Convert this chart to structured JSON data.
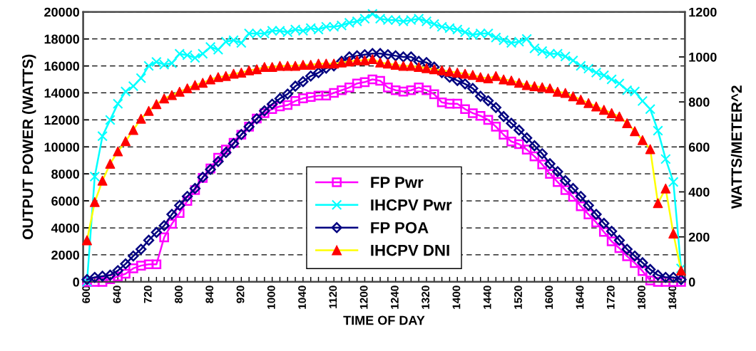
{
  "chart_data": {
    "type": "line",
    "xlabel": "TIME OF DAY",
    "ylabel": "OUTPUT POWER (WATTS)",
    "y2label": "WATTS/METER^2",
    "categories": [
      "600",
      null,
      null,
      null,
      "640",
      null,
      null,
      null,
      "720",
      null,
      null,
      null,
      "800",
      null,
      null,
      null,
      "840",
      null,
      null,
      null,
      "920",
      null,
      null,
      null,
      "1000",
      null,
      null,
      null,
      "1040",
      null,
      null,
      null,
      "1120",
      null,
      null,
      null,
      "1200",
      null,
      null,
      null,
      "1240",
      null,
      null,
      null,
      "1320",
      null,
      null,
      null,
      "1400",
      null,
      null,
      null,
      "1440",
      null,
      null,
      null,
      "1520",
      null,
      null,
      null,
      "1600",
      null,
      null,
      null,
      "1640",
      null,
      null,
      null,
      "1720",
      null,
      null,
      null,
      "1800",
      null,
      null,
      null,
      "1840",
      null
    ],
    "ylim": [
      0,
      20000
    ],
    "yticks": [
      0,
      2000,
      4000,
      6000,
      8000,
      10000,
      12000,
      14000,
      16000,
      18000,
      20000
    ],
    "y2lim": [
      0,
      1200
    ],
    "y2ticks": [
      0,
      200,
      400,
      600,
      800,
      1000,
      1200
    ],
    "grid": "y",
    "legend": "bottom",
    "series": [
      {
        "name": "FP Pwr",
        "color": "#ff00ff",
        "marker": "square",
        "values": [
          0,
          0,
          0,
          200,
          400,
          600,
          1000,
          1200,
          1300,
          1300,
          3300,
          4300,
          5100,
          6000,
          6800,
          7700,
          8400,
          9200,
          9800,
          10300,
          10900,
          11500,
          12100,
          12500,
          12800,
          13000,
          13100,
          13400,
          13600,
          13700,
          13800,
          13800,
          14000,
          14200,
          14400,
          14700,
          14800,
          15000,
          14900,
          14400,
          14200,
          14100,
          14200,
          14400,
          14200,
          13900,
          13300,
          13200,
          13200,
          12800,
          12500,
          12300,
          12000,
          11500,
          10900,
          10400,
          10200,
          9800,
          9300,
          8700,
          8000,
          7400,
          6800,
          6300,
          5600,
          5000,
          4400,
          3700,
          3000,
          2500,
          1900,
          1400,
          800,
          100,
          0,
          0,
          0,
          0
        ]
      },
      {
        "name": "IHCPV Pwr",
        "color": "#00ffff",
        "marker": "cross",
        "values": [
          0,
          7800,
          10800,
          12000,
          13200,
          14100,
          14500,
          15100,
          16000,
          16300,
          16100,
          16200,
          16900,
          16800,
          16600,
          16900,
          17400,
          17200,
          17800,
          17900,
          17700,
          18400,
          18400,
          18400,
          18600,
          18600,
          18500,
          18700,
          18600,
          18800,
          18700,
          18900,
          18900,
          19000,
          19200,
          19300,
          19500,
          19850,
          19500,
          19400,
          19400,
          19300,
          19400,
          19500,
          19300,
          19100,
          18900,
          18800,
          18700,
          18500,
          18300,
          18400,
          18400,
          18100,
          17900,
          17700,
          17800,
          18000,
          17300,
          17100,
          16900,
          16900,
          16700,
          16400,
          16000,
          15800,
          15500,
          15300,
          15000,
          14700,
          14200,
          14100,
          13400,
          12800,
          11200,
          9100,
          7400,
          1000
        ]
      },
      {
        "name": "FP POA",
        "color": "#000080",
        "marker": "diamond",
        "axis": "y2",
        "values": [
          10,
          20,
          25,
          30,
          50,
          80,
          115,
          145,
          185,
          220,
          250,
          300,
          340,
          380,
          415,
          465,
          500,
          535,
          575,
          615,
          655,
          690,
          725,
          760,
          790,
          815,
          835,
          870,
          890,
          915,
          930,
          950,
          960,
          980,
          1000,
          1005,
          1010,
          1015,
          1015,
          1010,
          1005,
          1000,
          1000,
          980,
          975,
          955,
          930,
          910,
          895,
          880,
          860,
          825,
          805,
          775,
          735,
          705,
          675,
          640,
          605,
          570,
          525,
          490,
          450,
          415,
          380,
          340,
          300,
          260,
          225,
          185,
          145,
          115,
          85,
          55,
          30,
          20,
          20,
          10
        ]
      },
      {
        "name": "IHCPV DNI",
        "color": "#ffff00",
        "colors": [
          "#ff0000",
          "#ff0000",
          "#ff0000",
          "#ff0000",
          "#ff0000",
          "#ff0000",
          "#ff0000",
          "#ff0000",
          "#ff0000",
          "#ff0000",
          "#ff0000",
          "#ff0000",
          "#ff0000",
          "#ff0000",
          "#ff0000",
          "#ff0000",
          "#ff0000",
          "#ff0000",
          "#ff0000",
          "#ff0000",
          "#ff0000",
          "#ff0000",
          "#ff0000",
          "#ff0000",
          "#ff0000",
          "#ff0000",
          "#ff0000",
          "#ff0000",
          "#ff0000",
          "#ff0000",
          "#ff0000",
          "#ff0000",
          "#ff0000",
          "#ff0000",
          "#ff0000",
          "#ff0000",
          "#ff0000",
          "#ff0000",
          "#ff0000",
          "#ff0000",
          "#ff0000",
          "#ff0000",
          "#ff0000",
          "#ff0000",
          "#ff0000",
          "#ff0000",
          "#ff0000",
          "#ff0000",
          "#ff0000",
          "#ff0000",
          "#ff0000",
          "#ff0000",
          "#ff0000",
          "#ff0000",
          "#ff0000",
          "#ff0000",
          "#ff0000",
          "#ff0000",
          "#ff0000",
          "#ff0000",
          "#ff0000",
          "#ff0000",
          "#ff0000",
          "#ff0000",
          "#ff0000",
          "#ff0000",
          "#ff0000",
          "#ff0000",
          "#ff0000",
          "#ff0000",
          "#ff0000",
          "#ff0000",
          "#ff0000",
          "#ff0000",
          "#ff0000",
          "#ff0000",
          "#ff0000",
          "#ff0000"
        ],
        "marker": "triangle",
        "axis": "y2",
        "values": [
          185,
          355,
          450,
          525,
          580,
          625,
          675,
          725,
          760,
          790,
          815,
          830,
          845,
          860,
          875,
          885,
          900,
          910,
          915,
          925,
          930,
          940,
          945,
          955,
          955,
          960,
          960,
          960,
          965,
          965,
          970,
          970,
          970,
          975,
          980,
          985,
          985,
          990,
          975,
          970,
          965,
          960,
          960,
          955,
          950,
          945,
          940,
          935,
          930,
          925,
          920,
          910,
          905,
          915,
          900,
          895,
          885,
          875,
          870,
          865,
          860,
          845,
          840,
          825,
          810,
          795,
          780,
          765,
          750,
          735,
          705,
          670,
          630,
          590,
          350,
          415,
          215,
          50
        ]
      }
    ]
  }
}
